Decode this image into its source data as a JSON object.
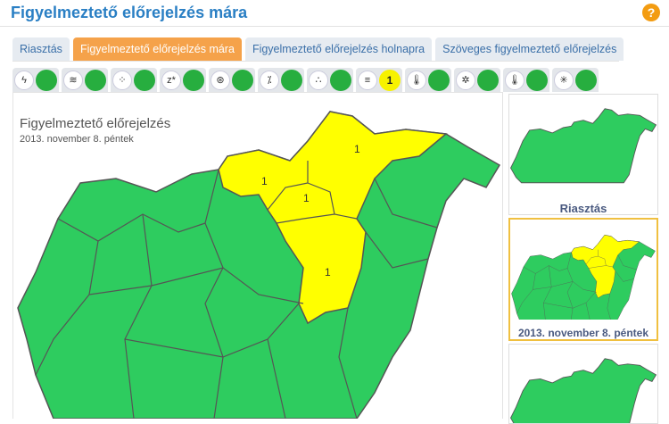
{
  "page": {
    "title": "Figyelmeztető előrejelzés mára",
    "help_label": "?"
  },
  "tabs": [
    {
      "label": "Riasztás"
    },
    {
      "label": "Figyelmeztető előrejelzés mára",
      "active": true
    },
    {
      "label": "Figyelmeztető előrejelzés holnapra"
    },
    {
      "label": "Szöveges figyelmeztető előrejelzés"
    }
  ],
  "warnings": [
    {
      "icon": "thunderstorm-icon",
      "glyph": "ϟ",
      "level": ""
    },
    {
      "icon": "wind-icon",
      "glyph": "≋",
      "level": ""
    },
    {
      "icon": "rain-icon",
      "glyph": "⁘",
      "level": ""
    },
    {
      "icon": "snowdrift-icon",
      "glyph": "z*",
      "level": ""
    },
    {
      "icon": "ice-rain-icon",
      "glyph": "⊛",
      "level": ""
    },
    {
      "icon": "freezing-rain-icon",
      "glyph": "⁒",
      "level": ""
    },
    {
      "icon": "snow-icon",
      "glyph": "∴",
      "level": ""
    },
    {
      "icon": "fog-icon",
      "glyph": "≡",
      "level": "1",
      "color": "#f7f200"
    },
    {
      "icon": "cold-icon",
      "glyph": "🌡",
      "level": ""
    },
    {
      "icon": "frost-icon",
      "glyph": "✲",
      "level": ""
    },
    {
      "icon": "heat-icon",
      "glyph": "🌡",
      "level": ""
    },
    {
      "icon": "wildfire-icon",
      "glyph": "✳",
      "level": ""
    }
  ],
  "map": {
    "title": "Figyelmeztető előrejelzés",
    "date": "2013. november 8. péntek",
    "labels": [
      "1",
      "1",
      "1",
      "1"
    ],
    "colors": {
      "none": "#2ecc5f",
      "level1": "#ffff00"
    }
  },
  "thumbnails": [
    {
      "caption": "Riasztás"
    },
    {
      "caption": "2013. november 8. péntek",
      "selected": true
    },
    {
      "caption": ""
    }
  ]
}
